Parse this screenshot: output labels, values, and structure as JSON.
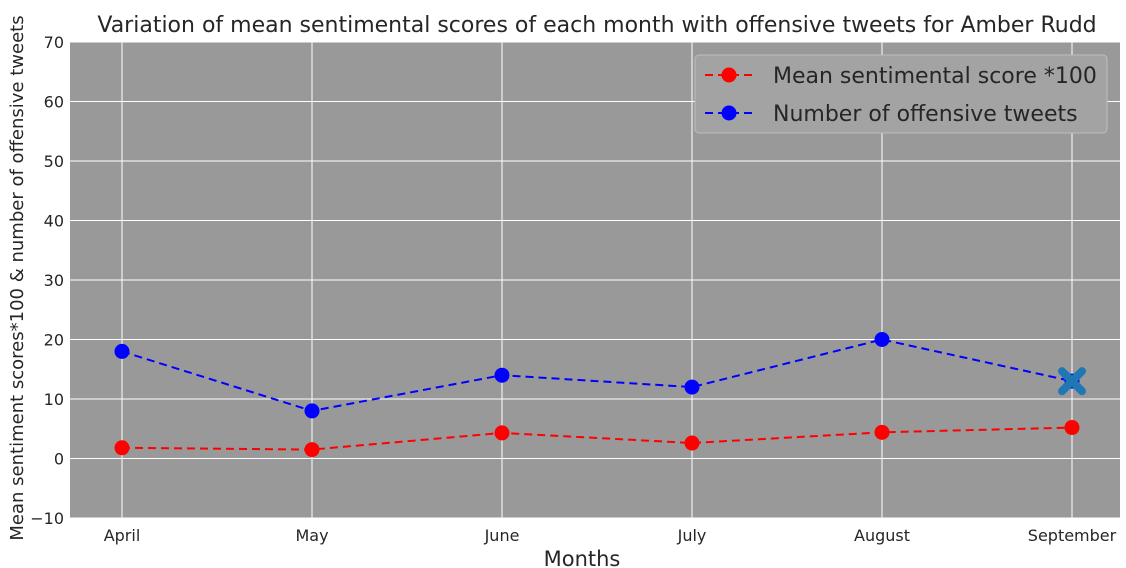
{
  "chart_data": {
    "type": "line",
    "title": "Variation of mean sentimental scores of each month with offensive tweets for Amber Rudd",
    "xlabel": "Months",
    "ylabel": "Mean sentiment scores*100 & number of offensive tweets",
    "categories": [
      "April",
      "May",
      "June",
      "July",
      "August",
      "September"
    ],
    "ylim": [
      -10,
      70
    ],
    "yticks": [
      -10,
      0,
      10,
      20,
      30,
      40,
      50,
      60,
      70
    ],
    "grid": true,
    "legend_position": "top-right",
    "series": [
      {
        "name": "Mean sentimental score *100",
        "values": [
          1.8,
          1.5,
          4.3,
          2.6,
          4.4,
          5.2
        ],
        "color": "#ff0000",
        "linestyle": "dashed",
        "marker": "circle"
      },
      {
        "name": "Number of offensive tweets",
        "values": [
          18,
          8,
          14,
          12,
          20,
          13
        ],
        "color": "#0000ff",
        "linestyle": "dashed",
        "marker": "circle"
      }
    ],
    "annotations": [
      {
        "type": "x-marker",
        "category": "September",
        "value": 13,
        "color": "#1f77b4"
      }
    ],
    "colors": {
      "plot_background": "#999999",
      "grid": "#ffffff"
    }
  }
}
